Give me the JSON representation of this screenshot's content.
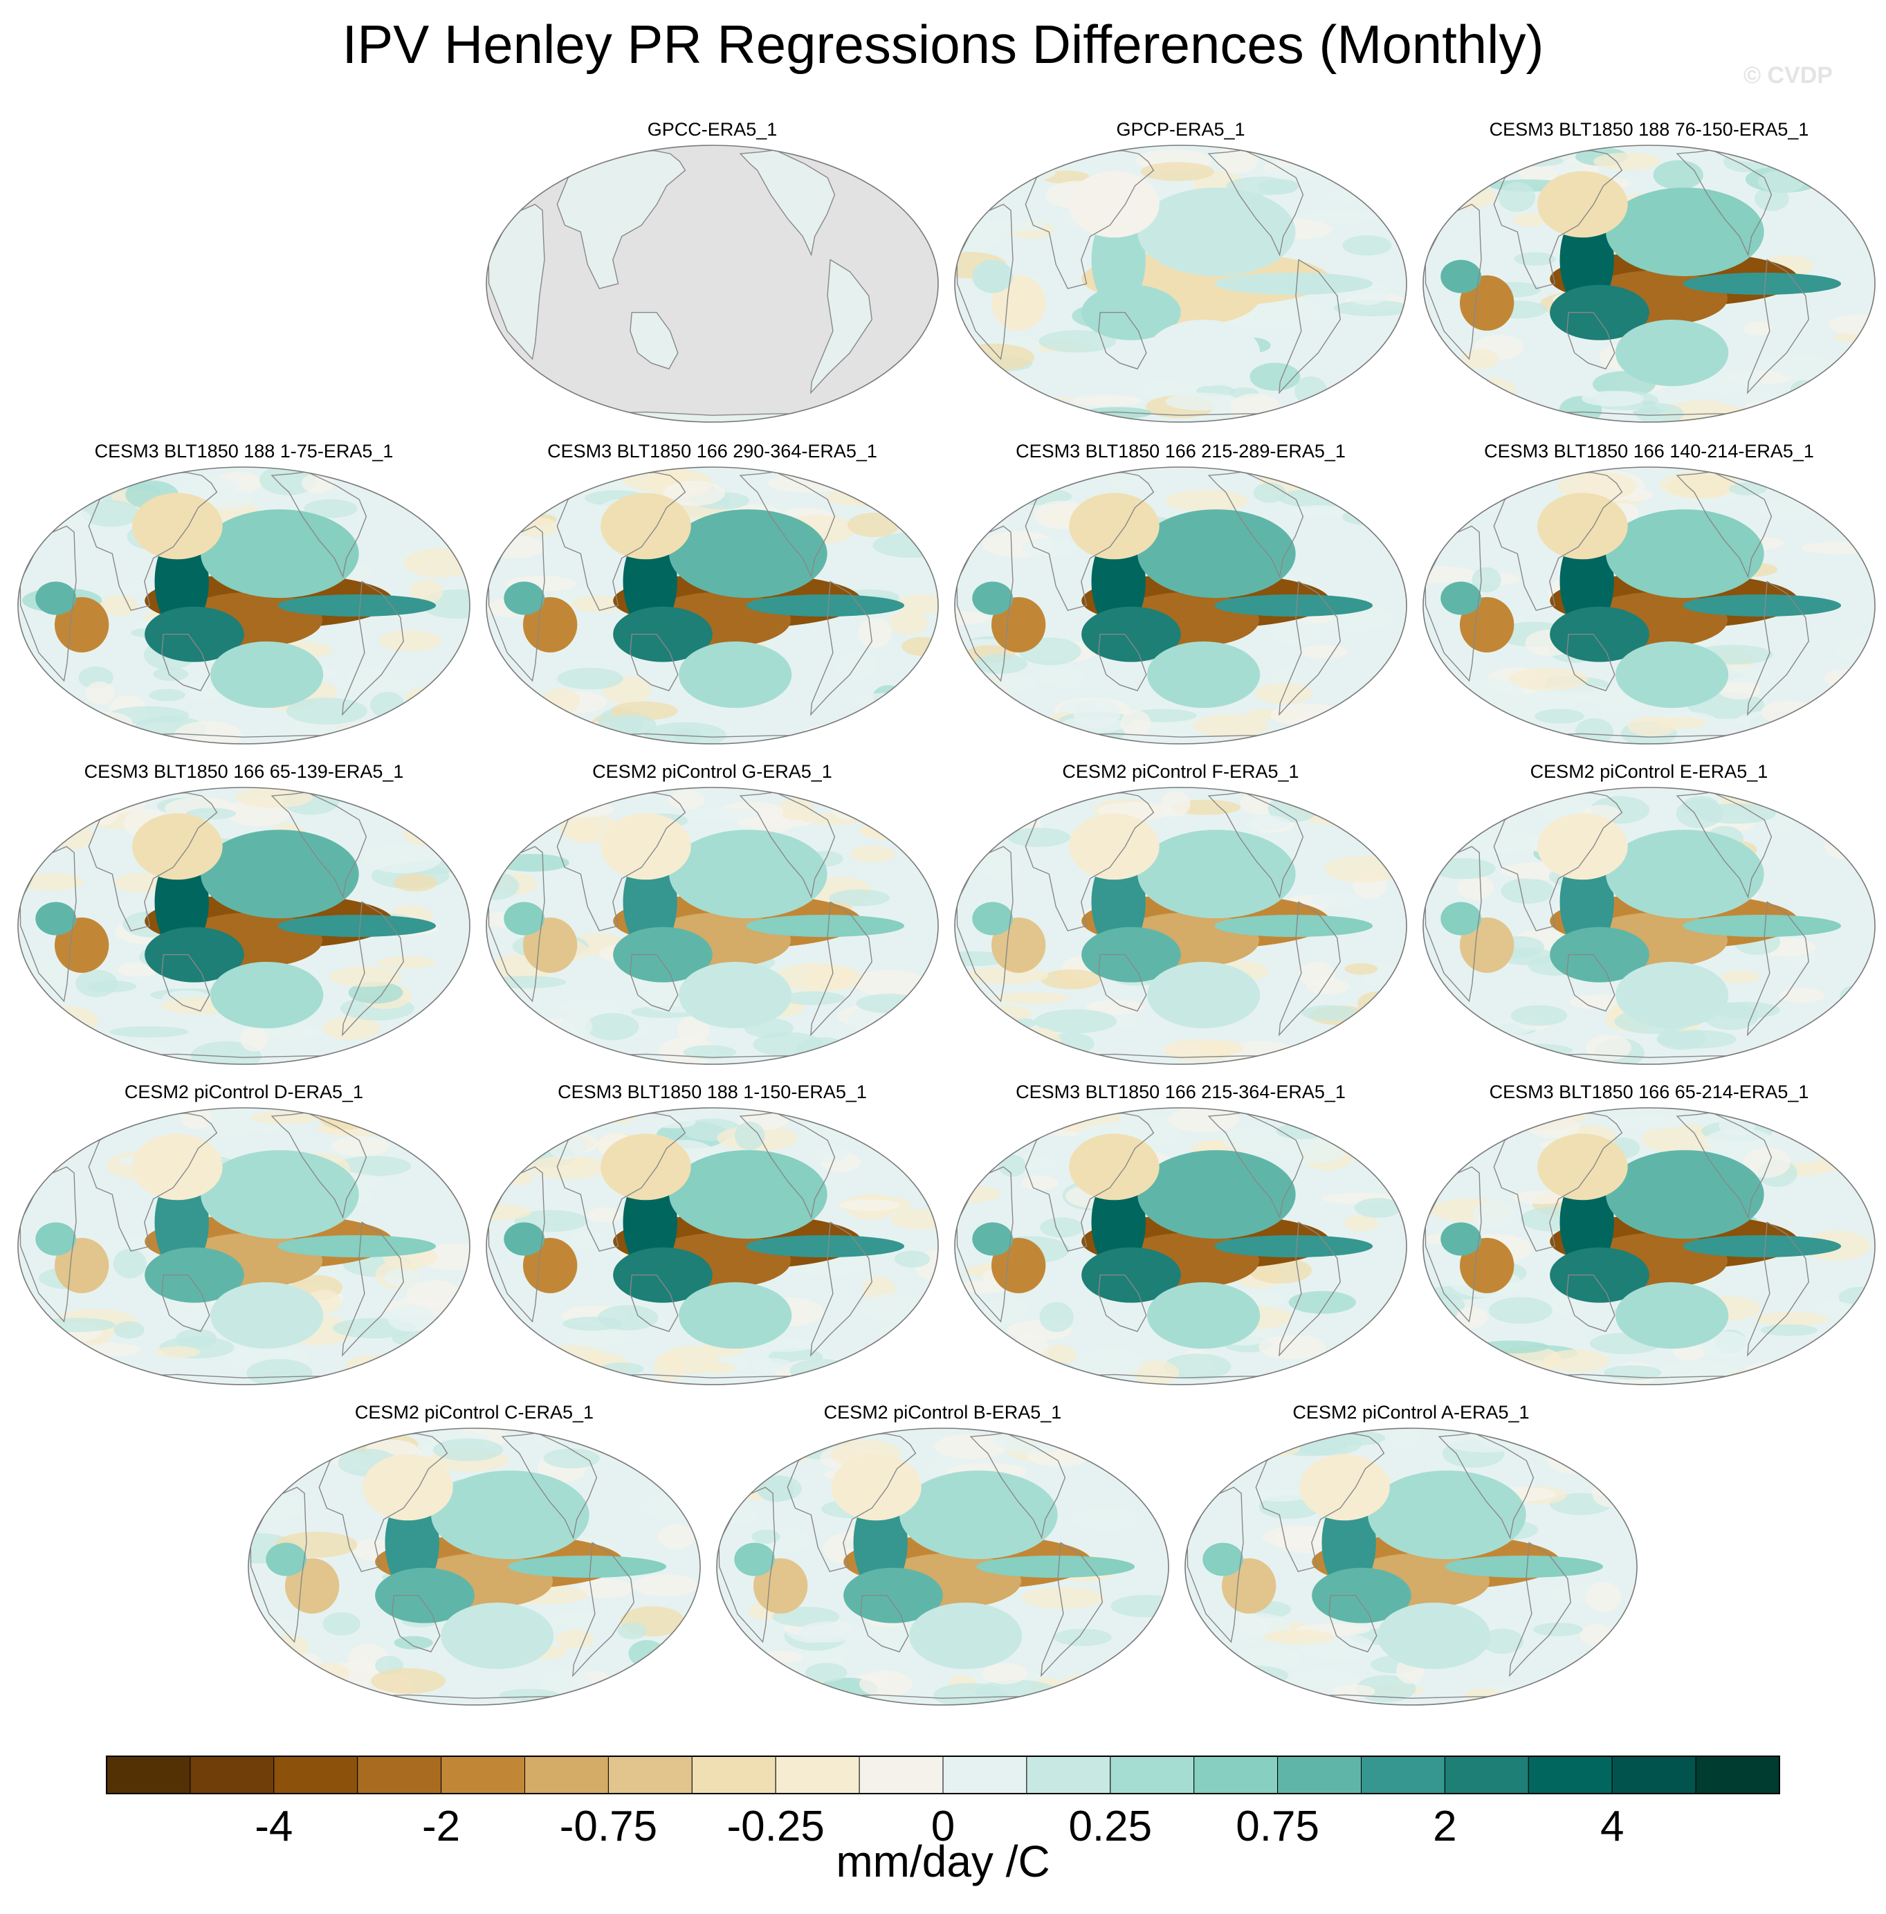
{
  "title": "IPV Henley PR Regressions Differences (Monthly)",
  "watermark": "© CVDP",
  "chart_data": {
    "type": "heatmap",
    "title": "IPV Henley PR Regressions Differences (Monthly)",
    "projection": "global map, centered on the Pacific",
    "panels": [
      {
        "name": "GPCC-ERA5_1",
        "land_only": true,
        "strength": 0.12
      },
      {
        "name": "GPCP-ERA5_1",
        "land_only": false,
        "strength": 0.35
      },
      {
        "name": "CESM3 BLT1850 188 76-150-ERA5_1",
        "land_only": false,
        "strength": 0.9
      },
      {
        "name": "CESM3 BLT1850 188 1-75-ERA5_1",
        "land_only": false,
        "strength": 0.9
      },
      {
        "name": "CESM3 BLT1850 166 290-364-ERA5_1",
        "land_only": false,
        "strength": 0.95
      },
      {
        "name": "CESM3 BLT1850 166 215-289-ERA5_1",
        "land_only": false,
        "strength": 0.95
      },
      {
        "name": "CESM3 BLT1850 166 140-214-ERA5_1",
        "land_only": false,
        "strength": 0.9
      },
      {
        "name": "CESM3 BLT1850 166 65-139-ERA5_1",
        "land_only": false,
        "strength": 0.95
      },
      {
        "name": "CESM2 piControl G-ERA5_1",
        "land_only": false,
        "strength": 0.7
      },
      {
        "name": "CESM2 piControl F-ERA5_1",
        "land_only": false,
        "strength": 0.7
      },
      {
        "name": "CESM2 piControl E-ERA5_1",
        "land_only": false,
        "strength": 0.65
      },
      {
        "name": "CESM2 piControl D-ERA5_1",
        "land_only": false,
        "strength": 0.65
      },
      {
        "name": "CESM3 BLT1850 188 1-150-ERA5_1",
        "land_only": false,
        "strength": 0.9
      },
      {
        "name": "CESM3 BLT1850 166 215-364-ERA5_1",
        "land_only": false,
        "strength": 0.95
      },
      {
        "name": "CESM3 BLT1850 166 65-214-ERA5_1",
        "land_only": false,
        "strength": 0.95
      },
      {
        "name": "CESM2 piControl C-ERA5_1",
        "land_only": false,
        "strength": 0.65
      },
      {
        "name": "CESM2 piControl B-ERA5_1",
        "land_only": false,
        "strength": 0.7
      },
      {
        "name": "CESM2 piControl A-ERA5_1",
        "land_only": false,
        "strength": 0.7
      }
    ],
    "colorbar": {
      "label": "mm/day /C",
      "tick_labels": [
        "-4",
        "-2",
        "-0.75",
        "-0.25",
        "0",
        "0.25",
        "0.75",
        "2",
        "4"
      ],
      "colors": [
        "#543005",
        "#6f3e09",
        "#8c510a",
        "#a86b20",
        "#c28736",
        "#d4ab67",
        "#e2c58c",
        "#f0dfb3",
        "#f6ecd2",
        "#f5f2ec",
        "#e6f2f1",
        "#c8e9e3",
        "#a6ddd3",
        "#86cfc1",
        "#5fb6a8",
        "#35978f",
        "#1d7f76",
        "#01665e",
        "#01544d",
        "#003c30"
      ]
    }
  }
}
